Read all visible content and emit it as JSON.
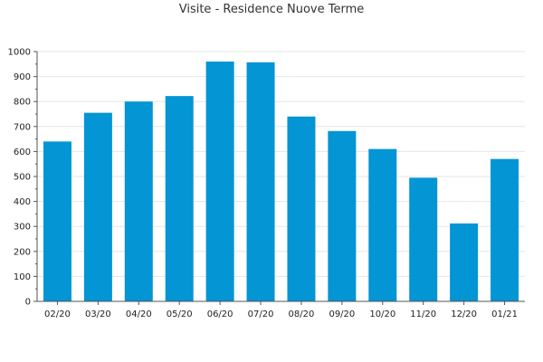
{
  "chart_data": {
    "type": "bar",
    "title": "Visite - Residence Nuove Terme",
    "xlabel": "",
    "ylabel": "",
    "categories": [
      "02/20",
      "03/20",
      "04/20",
      "05/20",
      "06/20",
      "07/20",
      "08/20",
      "09/20",
      "10/20",
      "11/20",
      "12/20",
      "01/21"
    ],
    "values": [
      640,
      755,
      800,
      822,
      960,
      957,
      740,
      682,
      610,
      495,
      312,
      570
    ],
    "ylim": [
      0,
      1000
    ],
    "yticks": [
      0,
      100,
      200,
      300,
      400,
      500,
      600,
      700,
      800,
      900,
      1000
    ],
    "grid": true,
    "legend": "none",
    "colors": {
      "bar": "#0395d4",
      "grid": "#e6e6e6",
      "axis": "#555555"
    }
  }
}
